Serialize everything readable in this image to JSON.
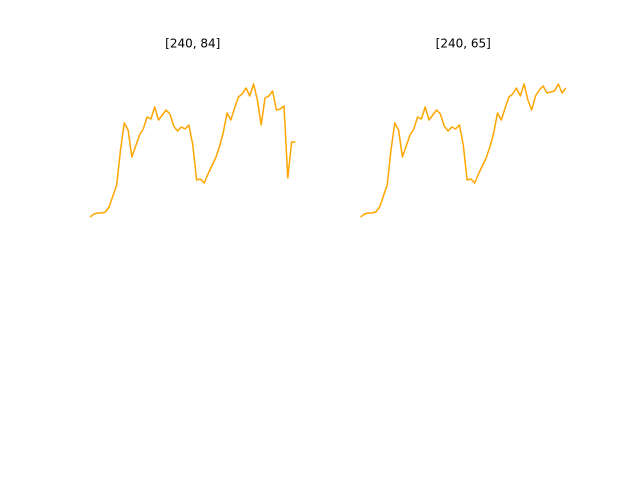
{
  "chart_data": [
    {
      "type": "line",
      "title": "[240, 84]",
      "axes": false,
      "color": "#ffa500",
      "ylim": [
        -5.6,
        162.4
      ],
      "values": [
        3,
        6,
        7,
        7,
        8,
        13,
        24,
        35,
        70,
        97,
        90,
        63,
        74,
        85,
        91,
        103,
        101,
        113,
        100,
        105,
        110,
        106,
        94,
        89,
        93,
        91,
        95,
        75,
        40,
        41,
        37,
        46,
        54,
        62,
        73,
        87,
        107,
        100,
        112,
        123,
        126,
        132,
        124,
        136,
        120,
        95,
        122,
        124,
        129,
        110,
        111,
        114,
        42,
        78,
        78
      ]
    },
    {
      "type": "line",
      "title": "[240, 65]",
      "axes": false,
      "color": "#ffa500",
      "ylim": [
        -5.6,
        162.4
      ],
      "values": [
        3,
        6,
        7,
        7,
        8,
        13,
        24,
        35,
        70,
        97,
        90,
        63,
        74,
        85,
        91,
        103,
        101,
        113,
        100,
        105,
        110,
        106,
        94,
        89,
        93,
        91,
        95,
        75,
        40,
        41,
        37,
        46,
        54,
        62,
        73,
        87,
        107,
        100,
        112,
        123,
        126,
        132,
        124,
        136,
        120,
        110,
        124,
        130,
        134,
        127,
        128,
        129,
        136,
        127,
        132
      ]
    }
  ]
}
